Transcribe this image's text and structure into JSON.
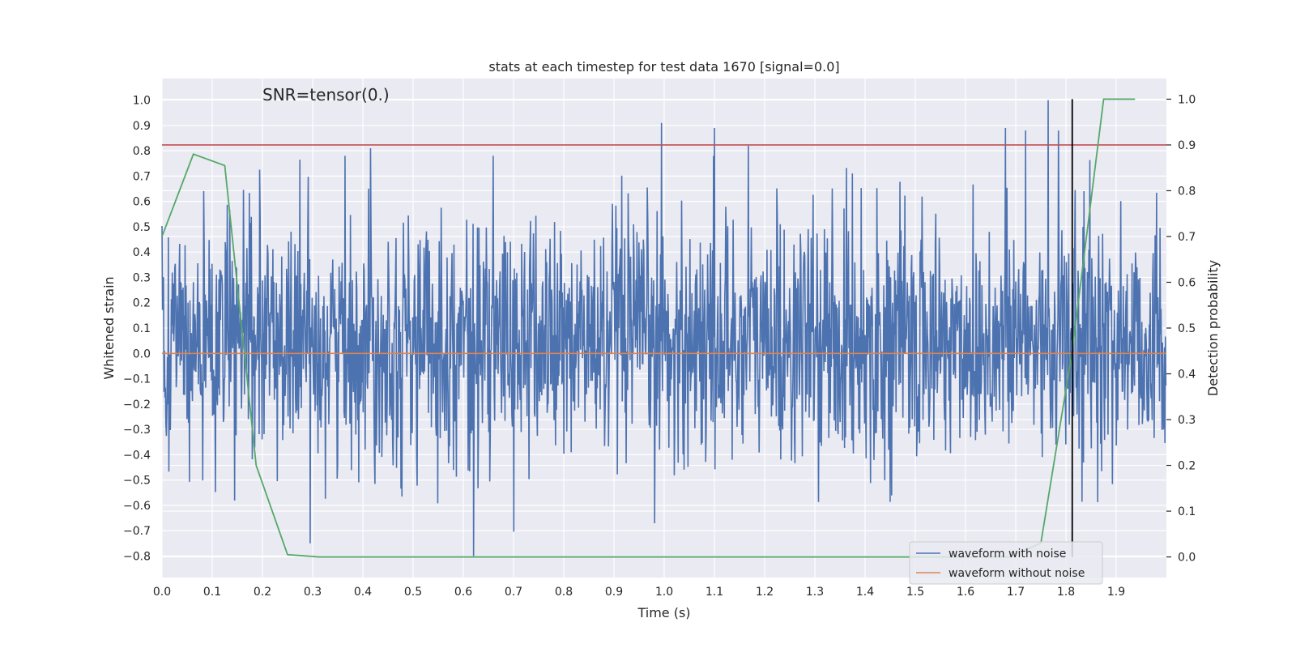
{
  "chart_data": {
    "type": "line",
    "title": "stats at each timestep for test data 1670 [signal=0.0]",
    "xlabel": "Time (s)",
    "ylabel": "Whitened strain",
    "ylabel_right": "Detection probability",
    "annotation": "SNR=tensor(0.)",
    "xlim": [
      0.0,
      2.0
    ],
    "ylim": [
      -0.885,
      1.085
    ],
    "ylim_right": [
      -0.045,
      1.045
    ],
    "x_ticks": [
      "0.0",
      "0.1",
      "0.2",
      "0.3",
      "0.4",
      "0.5",
      "0.6",
      "0.7",
      "0.8",
      "0.9",
      "1.0",
      "1.1",
      "1.2",
      "1.3",
      "1.4",
      "1.5",
      "1.6",
      "1.7",
      "1.8",
      "1.9"
    ],
    "y_ticks": [
      "1.0",
      "0.9",
      "0.8",
      "0.7",
      "0.6",
      "0.5",
      "0.4",
      "0.3",
      "0.2",
      "0.1",
      "0.0",
      "−0.1",
      "−0.2",
      "−0.3",
      "−0.4",
      "−0.5",
      "−0.6",
      "−0.7",
      "−0.8"
    ],
    "y_ticks_right": [
      "1.0",
      "0.9",
      "0.8",
      "0.7",
      "0.6",
      "0.5",
      "0.4",
      "0.3",
      "0.2",
      "0.1",
      "0.0"
    ],
    "grid": true,
    "legend_position": "bottom-right",
    "series": [
      {
        "name": "waveform with noise",
        "color": "#4c72b0",
        "axis": "left",
        "samples": 2048,
        "x_range": [
          0.0,
          2.0
        ],
        "amplitude_range": [
          -0.8,
          1.0
        ],
        "peaks": [
          {
            "x": 0.415,
            "y": 0.81
          },
          {
            "x": 0.62,
            "y": -0.8
          },
          {
            "x": 0.995,
            "y": 0.91
          },
          {
            "x": 1.1,
            "y": 0.89
          },
          {
            "x": 1.168,
            "y": 0.82
          },
          {
            "x": 1.68,
            "y": 0.89
          },
          {
            "x": 1.72,
            "y": 0.88
          },
          {
            "x": 1.765,
            "y": 1.0
          },
          {
            "x": 1.785,
            "y": 0.88
          }
        ]
      },
      {
        "name": "waveform without noise",
        "color": "#dd8452",
        "axis": "left",
        "x": [
          0.0,
          2.0
        ],
        "y": [
          0.0,
          0.0
        ]
      },
      {
        "name": "",
        "color": "#55a868",
        "axis": "right",
        "x": [
          0.0,
          0.0625,
          0.125,
          0.1875,
          0.25,
          0.3125,
          0.375,
          0.4375,
          0.5,
          0.5625,
          0.625,
          0.6875,
          0.75,
          0.8125,
          0.875,
          0.9375,
          1.0,
          1.0625,
          1.125,
          1.1875,
          1.25,
          1.3125,
          1.375,
          1.4375,
          1.5,
          1.5625,
          1.625,
          1.6875,
          1.75,
          1.8125,
          1.875,
          1.9375
        ],
        "y": [
          0.7,
          0.88,
          0.855,
          0.2,
          0.005,
          0.0,
          0.0,
          0.0,
          0.0,
          0.0,
          0.0,
          0.0,
          0.0,
          0.0,
          0.0,
          0.0,
          0.0,
          0.0,
          0.0,
          0.0,
          0.0,
          0.0,
          0.0,
          0.0,
          0.0,
          0.0,
          0.0,
          0.0,
          0.03,
          0.45,
          1.0,
          1.0
        ]
      }
    ],
    "hlines": [
      {
        "axis": "right",
        "y": 0.9,
        "color": "#c44e52"
      }
    ],
    "vlines": [
      {
        "x": 1.8125,
        "color": "#000000",
        "y_from": 0.0,
        "y_to": 1.0,
        "axis": "right"
      }
    ]
  }
}
